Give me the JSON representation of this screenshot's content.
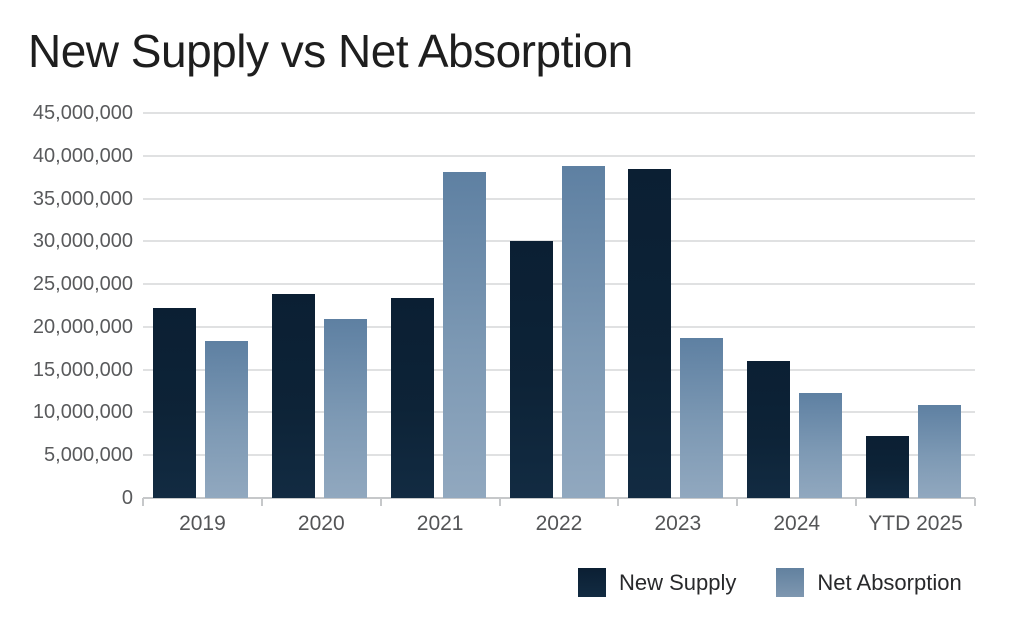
{
  "page": {
    "title": "New Supply vs Net Absorption"
  },
  "chart_data": {
    "type": "bar",
    "title": "New Supply vs Net Absorption",
    "categories": [
      "2019",
      "2020",
      "2021",
      "2022",
      "2023",
      "2024",
      "YTD 2025"
    ],
    "series": [
      {
        "name": "New Supply",
        "color": "#0d2337",
        "values": [
          22200000,
          23800000,
          23400000,
          30000000,
          38500000,
          16000000,
          7300000
        ]
      },
      {
        "name": "Net Absorption",
        "color": "#7495b1",
        "values": [
          18400000,
          20900000,
          38100000,
          38800000,
          18700000,
          12300000,
          10900000
        ]
      }
    ],
    "xlabel": "",
    "ylabel": "",
    "ylim": [
      0,
      45000000
    ],
    "y_tick_step": 5000000,
    "y_tick_labels": [
      "0",
      "5,000,000",
      "10,000,000",
      "15,000,000",
      "20,000,000",
      "25,000,000",
      "30,000,000",
      "35,000,000",
      "40,000,000",
      "45,000,000"
    ],
    "grid": true,
    "legend_position": "bottom-right"
  }
}
